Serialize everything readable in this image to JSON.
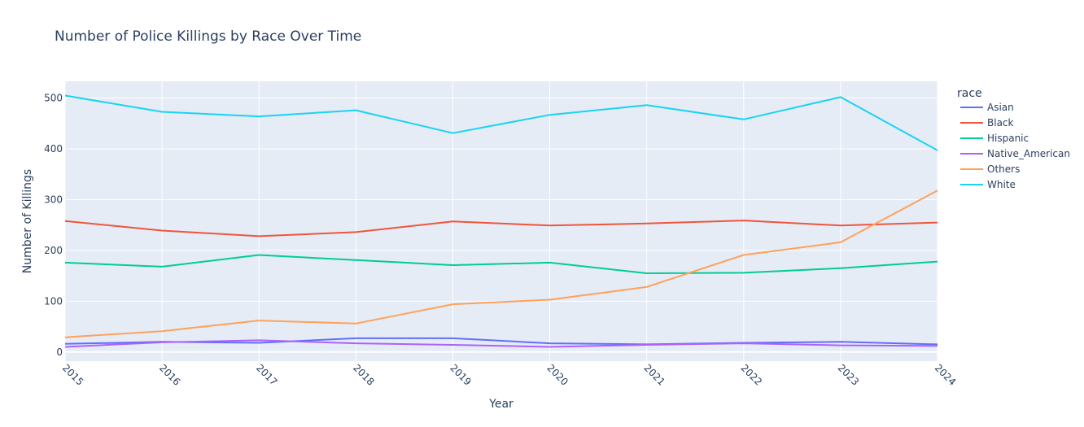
{
  "chart_data": {
    "type": "line",
    "title": "Number of Police Killings by Race Over Time",
    "xlabel": "Year",
    "ylabel": "Number of Killings",
    "legend_title": "race",
    "legend_position": "right",
    "grid": true,
    "x": [
      2015,
      2016,
      2017,
      2018,
      2019,
      2020,
      2021,
      2022,
      2023,
      2024
    ],
    "x_tick_labels": [
      "2015",
      "2016",
      "2017",
      "2018",
      "2019",
      "2020",
      "2021",
      "2022",
      "2023",
      "2024"
    ],
    "xlim": [
      2015,
      2024
    ],
    "ylim": [
      -18,
      533
    ],
    "y_ticks": [
      0,
      100,
      200,
      300,
      400,
      500
    ],
    "y_tick_labels": [
      "0",
      "100",
      "200",
      "300",
      "400",
      "500"
    ],
    "series": [
      {
        "name": "Asian",
        "color": "#636efa",
        "values": [
          16,
          20,
          18,
          27,
          27,
          17,
          15,
          18,
          20,
          15
        ]
      },
      {
        "name": "Black",
        "color": "#EF553B",
        "values": [
          258,
          239,
          228,
          236,
          257,
          249,
          253,
          259,
          249,
          255
        ]
      },
      {
        "name": "Hispanic",
        "color": "#00cc96",
        "values": [
          176,
          168,
          191,
          181,
          171,
          176,
          155,
          156,
          165,
          178
        ]
      },
      {
        "name": "Native_American",
        "color": "#ab63fa",
        "values": [
          10,
          19,
          23,
          17,
          14,
          10,
          14,
          17,
          13,
          12
        ]
      },
      {
        "name": "Others",
        "color": "#FFA15A",
        "values": [
          29,
          41,
          62,
          56,
          94,
          103,
          128,
          191,
          216,
          318
        ]
      },
      {
        "name": "White",
        "color": "#19d3f3",
        "values": [
          505,
          473,
          464,
          476,
          431,
          467,
          486,
          458,
          502,
          397
        ]
      }
    ]
  }
}
